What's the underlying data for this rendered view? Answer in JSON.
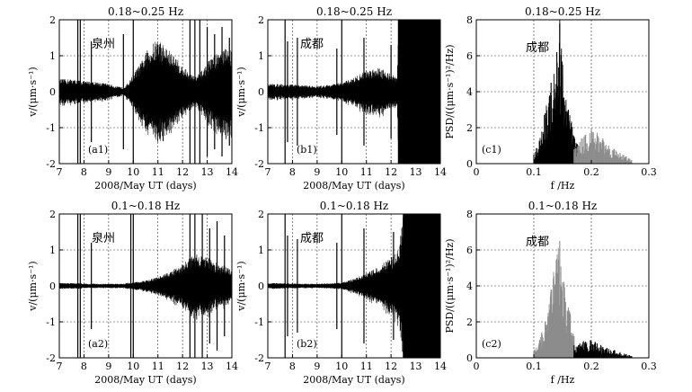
{
  "chart_data": [
    {
      "id": "a1",
      "type": "line",
      "row": 0,
      "col": 0,
      "title": "0.18~0.25 Hz",
      "panel_label": "(a1)",
      "station": "泉州",
      "xlabel": "2008/May UT (days)",
      "ylabel": "v/(μm·s⁻¹)",
      "xlim": [
        7,
        14
      ],
      "ylim": [
        -2,
        2
      ],
      "xticks": [
        "7",
        "8",
        "9",
        "10",
        "11",
        "12",
        "13",
        "14"
      ],
      "yticks": [
        "-2",
        "-1",
        "0",
        "1",
        "2"
      ],
      "envelope_x": [
        7.0,
        7.5,
        8.0,
        8.5,
        9.0,
        9.3,
        9.6,
        9.8,
        10.0,
        10.3,
        10.6,
        11.0,
        11.4,
        11.8,
        12.0,
        12.2,
        12.5,
        12.8,
        13.2,
        13.6,
        14.0
      ],
      "envelope_amp": [
        0.35,
        0.35,
        0.3,
        0.28,
        0.22,
        0.15,
        0.12,
        0.25,
        0.5,
        0.8,
        1.2,
        1.5,
        1.2,
        0.9,
        0.7,
        0.6,
        0.4,
        0.6,
        1.0,
        1.2,
        1.2
      ],
      "spikes": [
        [
          7.75,
          2.0
        ],
        [
          7.85,
          2.0
        ],
        [
          8.3,
          1.4
        ],
        [
          9.6,
          1.6
        ],
        [
          10.0,
          2.0
        ],
        [
          12.3,
          2.0
        ],
        [
          12.5,
          2.0
        ],
        [
          12.7,
          2.0
        ],
        [
          13.0,
          1.8
        ],
        [
          13.3,
          1.6
        ],
        [
          13.6,
          1.8
        ],
        [
          13.9,
          1.5
        ]
      ]
    },
    {
      "id": "b1",
      "type": "line",
      "row": 0,
      "col": 1,
      "title": "0.18~0.25 Hz",
      "panel_label": "(b1)",
      "station": "成都",
      "xlabel": "2008/May UT (days)",
      "ylabel": "v/(μm·s⁻¹)",
      "xlim": [
        7,
        14
      ],
      "ylim": [
        -2,
        2
      ],
      "xticks": [
        "7",
        "8",
        "9",
        "10",
        "11",
        "12",
        "13",
        "14"
      ],
      "yticks": [
        "-2",
        "-1",
        "0",
        "1",
        "2"
      ],
      "envelope_x": [
        7.0,
        7.5,
        8.0,
        8.5,
        9.0,
        9.5,
        10.0,
        10.5,
        11.0,
        11.5,
        12.0,
        12.25,
        12.3,
        14.0
      ],
      "envelope_amp": [
        0.22,
        0.22,
        0.2,
        0.18,
        0.15,
        0.2,
        0.25,
        0.4,
        0.6,
        0.7,
        0.5,
        0.4,
        2.0,
        2.0
      ],
      "spikes": [
        [
          7.7,
          2.0
        ],
        [
          7.8,
          1.4
        ],
        [
          8.2,
          1.5
        ],
        [
          9.8,
          1.2
        ],
        [
          10.0,
          2.0
        ],
        [
          10.9,
          1.5
        ],
        [
          12.0,
          1.3
        ],
        [
          12.3,
          2.0
        ]
      ]
    },
    {
      "id": "c1",
      "type": "bar",
      "row": 0,
      "col": 2,
      "title": "0.18~0.25 Hz",
      "panel_label": "(c1)",
      "station": "成都",
      "xlabel": "f /Hz",
      "ylabel": "PSD/((μm·s⁻¹)²/Hz)",
      "xlim": [
        0,
        0.3
      ],
      "ylim": [
        0,
        8
      ],
      "xticks": [
        "0",
        "0.1",
        "0.2",
        "0.3"
      ],
      "yticks": [
        "0",
        "2",
        "4",
        "6",
        "8"
      ],
      "series": [
        {
          "name": "black",
          "color": "#000000",
          "x": [
            0.1,
            0.11,
            0.12,
            0.13,
            0.14,
            0.145,
            0.15,
            0.16,
            0.17,
            0.18
          ],
          "values": [
            0.5,
            1.2,
            2.8,
            4.5,
            6.2,
            7.8,
            5.5,
            3.0,
            1.5,
            0.6
          ]
        },
        {
          "name": "gray",
          "color": "#8c8c8c",
          "x": [
            0.17,
            0.18,
            0.19,
            0.2,
            0.21,
            0.22,
            0.23,
            0.24,
            0.25,
            0.26,
            0.27
          ],
          "values": [
            0.8,
            1.2,
            1.6,
            1.9,
            1.6,
            1.4,
            1.0,
            0.8,
            0.6,
            0.4,
            0.2
          ]
        }
      ]
    },
    {
      "id": "a2",
      "type": "line",
      "row": 1,
      "col": 0,
      "title": "0.1~0.18 Hz",
      "panel_label": "(a2)",
      "station": "泉州",
      "xlabel": "2008/May UT (days)",
      "ylabel": "v/(μm·s⁻¹)",
      "xlim": [
        7,
        14
      ],
      "ylim": [
        -2,
        2
      ],
      "xticks": [
        "7",
        "8",
        "9",
        "10",
        "11",
        "12",
        "13",
        "14"
      ],
      "yticks": [
        "-2",
        "-1",
        "0",
        "1",
        "2"
      ],
      "envelope_x": [
        7.0,
        7.5,
        8.0,
        8.5,
        9.0,
        9.5,
        10.0,
        10.5,
        11.0,
        11.5,
        12.0,
        12.5,
        13.0,
        13.5,
        14.0
      ],
      "envelope_amp": [
        0.08,
        0.08,
        0.07,
        0.06,
        0.06,
        0.06,
        0.1,
        0.15,
        0.25,
        0.4,
        0.6,
        0.9,
        0.8,
        0.6,
        0.5
      ],
      "spikes": [
        [
          7.75,
          2.0
        ],
        [
          7.85,
          2.0
        ],
        [
          8.3,
          1.2
        ],
        [
          9.9,
          2.0
        ],
        [
          10.0,
          2.0
        ],
        [
          12.3,
          2.0
        ],
        [
          12.5,
          2.0
        ],
        [
          12.8,
          2.0
        ],
        [
          13.1,
          1.6
        ],
        [
          13.4,
          1.8
        ],
        [
          13.7,
          1.4
        ]
      ]
    },
    {
      "id": "b2",
      "type": "line",
      "row": 1,
      "col": 1,
      "title": "0.1~0.18 Hz",
      "panel_label": "(b2)",
      "station": "成都",
      "xlabel": "2008/May UT (days)",
      "ylabel": "v/(μm·s⁻¹)",
      "xlim": [
        7,
        14
      ],
      "ylim": [
        -2,
        2
      ],
      "xticks": [
        "7",
        "8",
        "9",
        "10",
        "11",
        "12",
        "13",
        "14"
      ],
      "yticks": [
        "-2",
        "-1",
        "0",
        "1",
        "2"
      ],
      "envelope_x": [
        7.0,
        7.5,
        8.0,
        8.5,
        9.0,
        9.5,
        10.0,
        10.5,
        11.0,
        11.5,
        12.0,
        12.3,
        12.5,
        14.0
      ],
      "envelope_amp": [
        0.08,
        0.08,
        0.07,
        0.06,
        0.06,
        0.07,
        0.1,
        0.2,
        0.35,
        0.55,
        0.8,
        1.0,
        2.0,
        2.0
      ],
      "spikes": [
        [
          7.7,
          2.0
        ],
        [
          7.8,
          1.4
        ],
        [
          8.2,
          1.3
        ],
        [
          9.8,
          1.2
        ],
        [
          10.0,
          2.0
        ],
        [
          10.9,
          1.6
        ],
        [
          12.1,
          1.5
        ],
        [
          12.5,
          2.0
        ]
      ]
    },
    {
      "id": "c2",
      "type": "bar",
      "row": 1,
      "col": 2,
      "title": "0.1~0.18 Hz",
      "panel_label": "(c2)",
      "station": "成都",
      "xlabel": "f /Hz",
      "ylabel": "PSD/((μm·s⁻¹)²/Hz)",
      "xlim": [
        0,
        0.3
      ],
      "ylim": [
        0,
        8
      ],
      "xticks": [
        "0",
        "0.1",
        "0.2",
        "0.3"
      ],
      "yticks": [
        "0",
        "2",
        "4",
        "6",
        "8"
      ],
      "series": [
        {
          "name": "gray",
          "color": "#8c8c8c",
          "x": [
            0.1,
            0.11,
            0.12,
            0.13,
            0.14,
            0.145,
            0.15,
            0.16,
            0.17
          ],
          "values": [
            0.4,
            1.0,
            2.0,
            3.8,
            5.5,
            6.5,
            4.2,
            2.8,
            1.2
          ]
        },
        {
          "name": "black",
          "color": "#000000",
          "x": [
            0.17,
            0.18,
            0.19,
            0.2,
            0.21,
            0.22,
            0.23,
            0.24,
            0.25,
            0.26,
            0.27
          ],
          "values": [
            0.7,
            0.8,
            0.9,
            0.9,
            0.8,
            0.6,
            0.5,
            0.4,
            0.3,
            0.2,
            0.1
          ]
        }
      ]
    }
  ]
}
